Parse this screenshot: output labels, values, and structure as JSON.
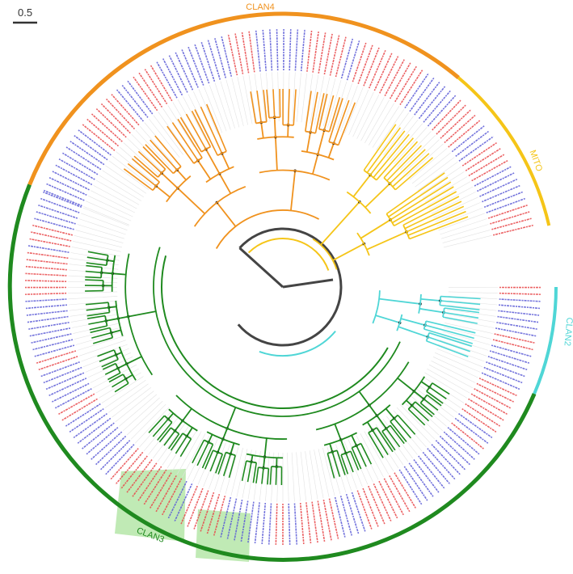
{
  "scale_bar": {
    "label": "0.5"
  },
  "clans": [
    {
      "name": "CLAN4",
      "color": "#f0921e"
    },
    {
      "name": "MITO",
      "color": "#f5c518"
    },
    {
      "name": "CLAN2",
      "color": "#4fd6d6"
    },
    {
      "name": "CLAN3",
      "color": "#1f8a1f"
    }
  ],
  "leaf_label_colors": {
    "species_a": "#e8474a",
    "species_b": "#5b5bd6",
    "outgroup": "#333333"
  },
  "highlight_color": "#b5e6a8",
  "trunk_color": "#444444",
  "layout": {
    "type": "circular-phylogenetic-tree"
  }
}
